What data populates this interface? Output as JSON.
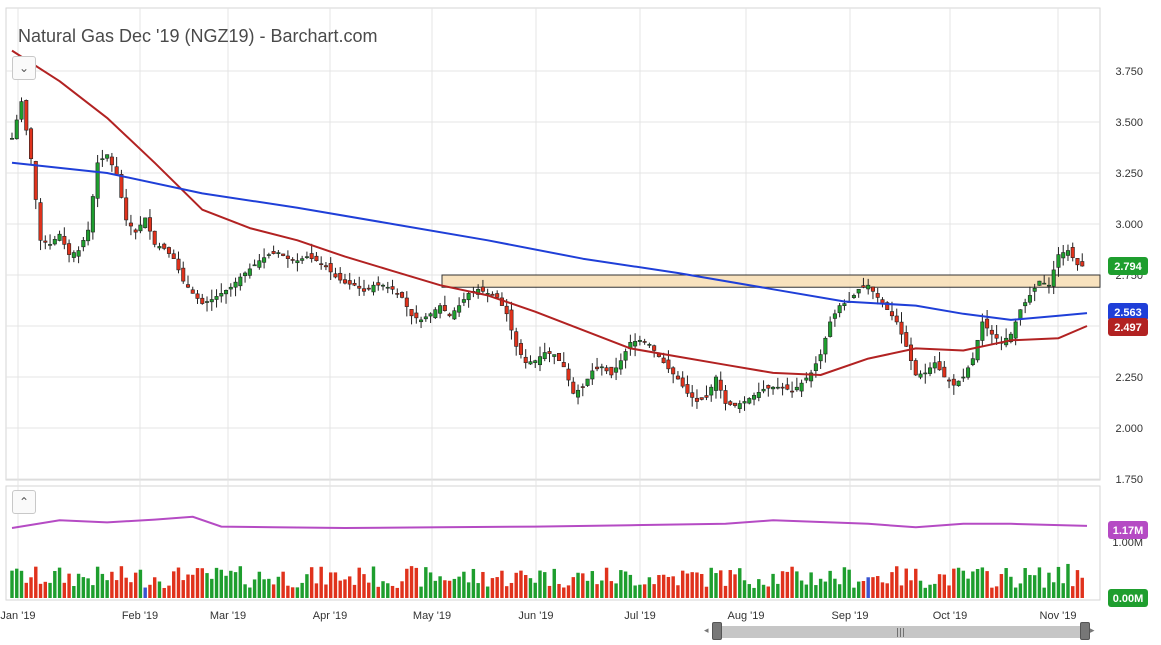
{
  "title": "Natural Gas Dec '19 (NGZ19) - Barchart.com",
  "controls": {
    "collapse_main": "⌄",
    "collapse_volume": "⌃",
    "scroll_grip": "|||",
    "scroll_left": "◂",
    "scroll_right": "▸"
  },
  "colors": {
    "up": "#1e9e2e",
    "down": "#e0321c",
    "ma_short": "#b22222",
    "ma_long": "#1f3fd8",
    "volume_avg": "#b54bc4",
    "zone_fill": "#f7ddb3",
    "zone_stroke": "#333333",
    "grid": "#e4e4e4"
  },
  "chart_data": [
    {
      "type": "candlestick",
      "title": "Natural Gas Dec '19 (NGZ19) - Barchart.com",
      "x_tick_labels": [
        "Jan '19",
        "Feb '19",
        "Mar '19",
        "Apr '19",
        "May '19",
        "Jun '19",
        "Jul '19",
        "Aug '19",
        "Sep '19",
        "Oct '19",
        "Nov '19"
      ],
      "y_tick_labels": [
        "3.750",
        "3.500",
        "3.250",
        "3.000",
        "2.750",
        "2.500",
        "2.250",
        "2.000",
        "1.750"
      ],
      "y_ticks": [
        3.75,
        3.5,
        3.25,
        3.0,
        2.75,
        2.5,
        2.25,
        2.0,
        1.75
      ],
      "ylim": [
        1.75,
        3.85
      ],
      "grid": true,
      "resistance_zone": [
        2.69,
        2.75
      ],
      "price_points": [
        [
          0,
          3.42
        ],
        [
          2,
          3.6
        ],
        [
          4,
          3.32
        ],
        [
          6,
          2.92
        ],
        [
          8,
          2.9
        ],
        [
          10,
          2.95
        ],
        [
          12,
          2.85
        ],
        [
          14,
          2.87
        ],
        [
          16,
          2.97
        ],
        [
          18,
          3.3
        ],
        [
          20,
          3.34
        ],
        [
          22,
          3.24
        ],
        [
          24,
          3.02
        ],
        [
          26,
          2.96
        ],
        [
          28,
          3.03
        ],
        [
          30,
          2.9
        ],
        [
          32,
          2.88
        ],
        [
          34,
          2.83
        ],
        [
          36,
          2.72
        ],
        [
          38,
          2.66
        ],
        [
          40,
          2.61
        ],
        [
          42,
          2.63
        ],
        [
          44,
          2.66
        ],
        [
          46,
          2.69
        ],
        [
          48,
          2.74
        ],
        [
          50,
          2.78
        ],
        [
          52,
          2.82
        ],
        [
          54,
          2.85
        ],
        [
          56,
          2.86
        ],
        [
          58,
          2.83
        ],
        [
          60,
          2.82
        ],
        [
          62,
          2.84
        ],
        [
          64,
          2.82
        ],
        [
          66,
          2.79
        ],
        [
          68,
          2.74
        ],
        [
          70,
          2.71
        ],
        [
          72,
          2.7
        ],
        [
          74,
          2.67
        ],
        [
          76,
          2.7
        ],
        [
          78,
          2.7
        ],
        [
          80,
          2.68
        ],
        [
          82,
          2.64
        ],
        [
          84,
          2.55
        ],
        [
          86,
          2.53
        ],
        [
          88,
          2.56
        ],
        [
          90,
          2.6
        ],
        [
          92,
          2.55
        ],
        [
          94,
          2.6
        ],
        [
          96,
          2.66
        ],
        [
          98,
          2.68
        ],
        [
          100,
          2.66
        ],
        [
          102,
          2.64
        ],
        [
          104,
          2.56
        ],
        [
          106,
          2.4
        ],
        [
          108,
          2.32
        ],
        [
          110,
          2.33
        ],
        [
          112,
          2.37
        ],
        [
          114,
          2.36
        ],
        [
          116,
          2.3
        ],
        [
          118,
          2.17
        ],
        [
          120,
          2.2
        ],
        [
          122,
          2.28
        ],
        [
          124,
          2.3
        ],
        [
          126,
          2.26
        ],
        [
          128,
          2.33
        ],
        [
          130,
          2.42
        ],
        [
          132,
          2.43
        ],
        [
          134,
          2.41
        ],
        [
          136,
          2.35
        ],
        [
          138,
          2.29
        ],
        [
          140,
          2.24
        ],
        [
          142,
          2.17
        ],
        [
          144,
          2.13
        ],
        [
          146,
          2.15
        ],
        [
          148,
          2.25
        ],
        [
          150,
          2.12
        ],
        [
          152,
          2.11
        ],
        [
          154,
          2.13
        ],
        [
          156,
          2.16
        ],
        [
          158,
          2.19
        ],
        [
          160,
          2.2
        ],
        [
          162,
          2.2
        ],
        [
          164,
          2.18
        ],
        [
          166,
          2.22
        ],
        [
          168,
          2.27
        ],
        [
          170,
          2.36
        ],
        [
          172,
          2.52
        ],
        [
          174,
          2.6
        ],
        [
          176,
          2.62
        ],
        [
          178,
          2.68
        ],
        [
          180,
          2.7
        ],
        [
          182,
          2.64
        ],
        [
          184,
          2.58
        ],
        [
          186,
          2.52
        ],
        [
          188,
          2.4
        ],
        [
          190,
          2.26
        ],
        [
          192,
          2.27
        ],
        [
          194,
          2.32
        ],
        [
          196,
          2.25
        ],
        [
          198,
          2.21
        ],
        [
          200,
          2.25
        ],
        [
          202,
          2.34
        ],
        [
          204,
          2.52
        ],
        [
          206,
          2.46
        ],
        [
          208,
          2.42
        ],
        [
          210,
          2.46
        ],
        [
          212,
          2.58
        ],
        [
          214,
          2.65
        ],
        [
          216,
          2.72
        ],
        [
          218,
          2.7
        ],
        [
          220,
          2.85
        ],
        [
          222,
          2.87
        ],
        [
          224,
          2.8
        ],
        [
          225,
          2.794
        ]
      ],
      "sma_50": [
        [
          0,
          3.85
        ],
        [
          10,
          3.7
        ],
        [
          20,
          3.52
        ],
        [
          30,
          3.3
        ],
        [
          40,
          3.07
        ],
        [
          50,
          2.98
        ],
        [
          60,
          2.92
        ],
        [
          70,
          2.84
        ],
        [
          80,
          2.77
        ],
        [
          90,
          2.7
        ],
        [
          100,
          2.65
        ],
        [
          110,
          2.57
        ],
        [
          120,
          2.48
        ],
        [
          130,
          2.39
        ],
        [
          140,
          2.35
        ],
        [
          150,
          2.31
        ],
        [
          160,
          2.27
        ],
        [
          170,
          2.26
        ],
        [
          180,
          2.34
        ],
        [
          190,
          2.39
        ],
        [
          200,
          2.38
        ],
        [
          210,
          2.43
        ],
        [
          220,
          2.44
        ],
        [
          226,
          2.5
        ]
      ],
      "sma_200": [
        [
          0,
          3.3
        ],
        [
          20,
          3.25
        ],
        [
          40,
          3.15
        ],
        [
          60,
          3.08
        ],
        [
          80,
          3.0
        ],
        [
          100,
          2.92
        ],
        [
          120,
          2.83
        ],
        [
          140,
          2.76
        ],
        [
          160,
          2.68
        ],
        [
          175,
          2.62
        ],
        [
          190,
          2.6
        ],
        [
          200,
          2.56
        ],
        [
          210,
          2.53
        ],
        [
          220,
          2.55
        ],
        [
          226,
          2.563
        ]
      ],
      "last_price": "2.794",
      "sma_200_last": "2.563",
      "sma_50_last": "2.497"
    },
    {
      "type": "bar",
      "title": "",
      "y_tick_labels": [
        "1.00M",
        "0.00M"
      ],
      "series_last_labels": [
        "1.17M",
        "0.00M"
      ],
      "volume_avg_points": [
        [
          0,
          1.14
        ],
        [
          10,
          1.25
        ],
        [
          20,
          1.22
        ],
        [
          30,
          1.26
        ],
        [
          38,
          1.3
        ],
        [
          44,
          1.16
        ],
        [
          55,
          1.15
        ],
        [
          70,
          1.14
        ],
        [
          90,
          1.15
        ],
        [
          110,
          1.16
        ],
        [
          130,
          1.18
        ],
        [
          150,
          1.2
        ],
        [
          160,
          1.25
        ],
        [
          180,
          1.2
        ],
        [
          190,
          1.15
        ],
        [
          200,
          1.2
        ],
        [
          210,
          1.2
        ],
        [
          226,
          1.17
        ]
      ],
      "volume_last": "1.17M"
    }
  ]
}
